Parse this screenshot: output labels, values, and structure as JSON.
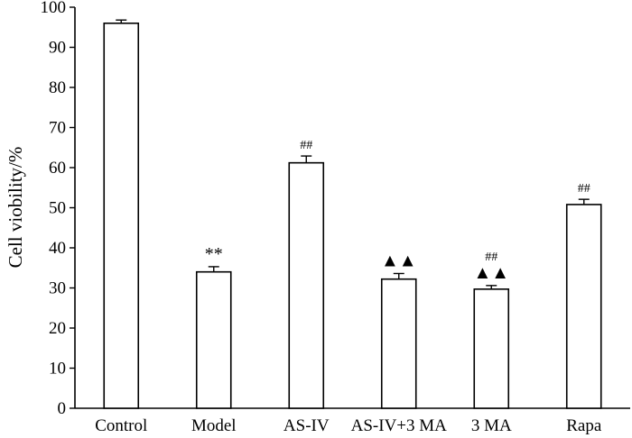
{
  "chart_data": {
    "type": "bar",
    "title": "",
    "xlabel": "",
    "ylabel": "Cell viobility/%",
    "ylim": [
      0,
      100
    ],
    "yticks": [
      0,
      10,
      20,
      30,
      40,
      50,
      60,
      70,
      80,
      90,
      100
    ],
    "yticks_text": [
      "0",
      "10",
      "20",
      "30",
      "40",
      "50",
      "60",
      "70",
      "80",
      "90",
      "100"
    ],
    "categories": [
      "Control",
      "Model",
      "AS-IV",
      "AS-IV+3 MA",
      "3 MA",
      "Rapa"
    ],
    "values": [
      96,
      34,
      61.2,
      32.2,
      29.7,
      50.8
    ],
    "errors": [
      0.8,
      1.3,
      1.7,
      1.4,
      0.9,
      1.3
    ],
    "annotations": [
      {
        "category": "Control",
        "lines": []
      },
      {
        "category": "Model",
        "lines": [
          "**"
        ]
      },
      {
        "category": "AS-IV",
        "lines": [
          "##"
        ]
      },
      {
        "category": "AS-IV+3 MA",
        "lines": [
          "▲▲"
        ]
      },
      {
        "category": "3 MA",
        "lines": [
          "##",
          "▲▲"
        ]
      },
      {
        "category": "Rapa",
        "lines": [
          "##"
        ]
      }
    ],
    "grid": false,
    "legend": "none"
  }
}
